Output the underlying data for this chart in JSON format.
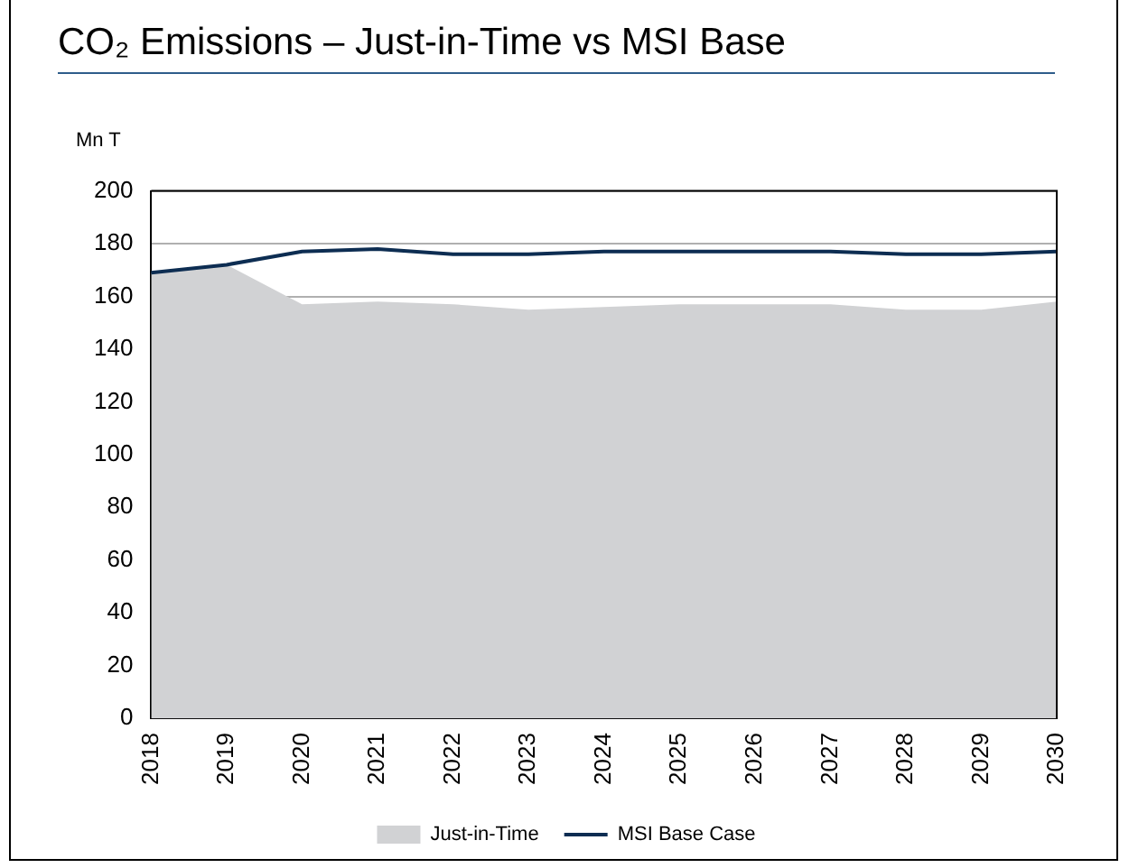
{
  "chart_data": {
    "type": "area",
    "title": "CO₂ Emissions – Just-in-Time vs MSI Base",
    "ylabel": "Mn T",
    "categories": [
      "2018",
      "2019",
      "2020",
      "2021",
      "2022",
      "2023",
      "2024",
      "2025",
      "2026",
      "2027",
      "2028",
      "2029",
      "2030"
    ],
    "series": [
      {
        "name": "Just-in-Time",
        "color": "#d1d2d4",
        "values": [
          169,
          172,
          157,
          158,
          157,
          155,
          156,
          157,
          157,
          157,
          155,
          155,
          158
        ]
      },
      {
        "name": "MSI Base Case",
        "type": "line",
        "color": "#0d2d52",
        "values": [
          169,
          172,
          177,
          178,
          176,
          176,
          177,
          177,
          177,
          177,
          176,
          176,
          177
        ]
      }
    ],
    "ylim": [
      0,
      200
    ],
    "yticks": [
      0,
      20,
      40,
      60,
      80,
      100,
      120,
      140,
      160,
      180,
      200
    ],
    "grid": "y",
    "legend": "bottom",
    "marker": "none"
  }
}
